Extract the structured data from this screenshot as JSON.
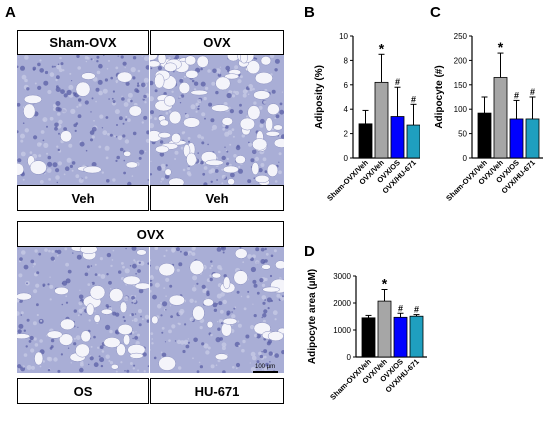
{
  "panel_a": {
    "letter": "A",
    "top_left_label": "Sham-OVX",
    "top_right_label": "OVX",
    "top_bottom_left_label": "Veh",
    "top_bottom_right_label": "Veh",
    "bottom_group_label": "OVX",
    "bottom_left_label": "OS",
    "bottom_right_label": "HU-671",
    "scale_bar": "100 µm"
  },
  "chart_data": [
    {
      "panel": "B",
      "type": "bar",
      "ylabel": "Adiposity (%)",
      "ylim": [
        0,
        10
      ],
      "yticks": [
        0,
        2,
        4,
        6,
        8,
        10
      ],
      "categories": [
        "Sham-OVX/Veh",
        "OVX/Veh",
        "OVX/OS",
        "OVX/HU-671"
      ],
      "values": [
        2.8,
        6.2,
        3.4,
        2.7
      ],
      "errors": [
        1.1,
        2.3,
        2.4,
        1.7
      ],
      "annotations": [
        "",
        "*",
        "#",
        "#"
      ],
      "colors": [
        "#000000",
        "#a6a6a6",
        "#0000ff",
        "#1f9fbf"
      ]
    },
    {
      "panel": "C",
      "type": "bar",
      "ylabel": "Adipocyte (#)",
      "ylim": [
        0,
        250
      ],
      "yticks": [
        0,
        50,
        100,
        150,
        200,
        250
      ],
      "categories": [
        "Sham-OVX/Veh",
        "OVX/Veh",
        "OVX/OS",
        "OVX/HU-671"
      ],
      "values": [
        92,
        165,
        80,
        80
      ],
      "errors": [
        33,
        50,
        38,
        45
      ],
      "annotations": [
        "",
        "*",
        "#",
        "#"
      ],
      "colors": [
        "#000000",
        "#a6a6a6",
        "#0000ff",
        "#1f9fbf"
      ]
    },
    {
      "panel": "D",
      "type": "bar",
      "ylabel": "Adipocyte area (µM)",
      "ylim": [
        0,
        3000
      ],
      "yticks": [
        0,
        1000,
        2000,
        3000
      ],
      "categories": [
        "Sham-OVX/Veh",
        "OVX/Veh",
        "OVX/OS",
        "OVX/HU-671"
      ],
      "values": [
        1450,
        2070,
        1470,
        1510
      ],
      "errors": [
        90,
        430,
        150,
        60
      ],
      "annotations": [
        "",
        "*",
        "#",
        "#"
      ],
      "colors": [
        "#000000",
        "#a6a6a6",
        "#0000ff",
        "#1f9fbf"
      ]
    }
  ]
}
